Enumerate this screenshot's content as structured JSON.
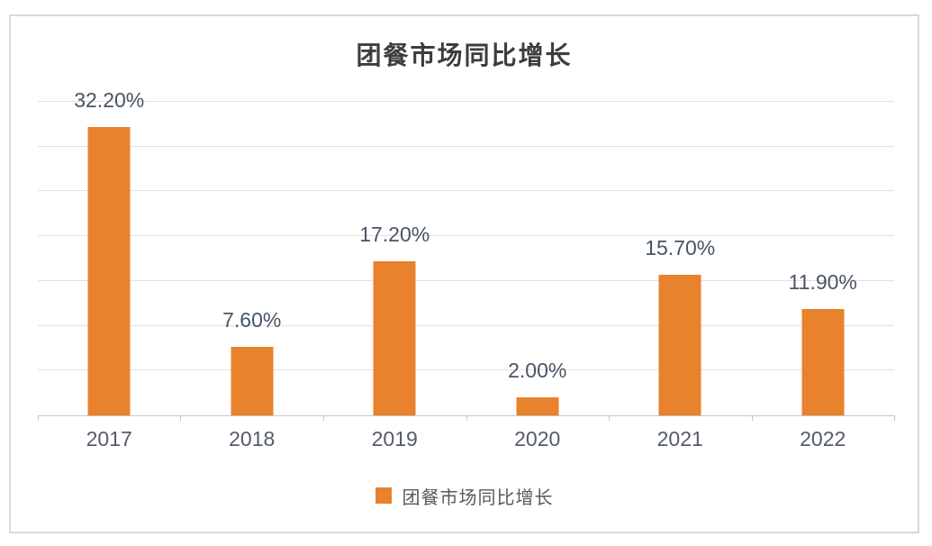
{
  "chart": {
    "title": "团餐市场同比增长",
    "legend": {
      "label": "团餐市场同比增长"
    },
    "colors": {
      "bar": "#E8822D",
      "gridline": "#E2E2E2",
      "axis": "#C6C6C6",
      "frame_border": "#D9D9D9",
      "title_text": "#3D3D3D",
      "data_label_text": "#485565",
      "axis_label_text": "#555C68",
      "legend_text": "#595959"
    }
  },
  "chart_data": {
    "type": "bar",
    "title": "团餐市场同比增长",
    "categories": [
      "2017",
      "2018",
      "2019",
      "2020",
      "2021",
      "2022"
    ],
    "values": [
      32.2,
      7.6,
      17.2,
      2.0,
      15.7,
      11.9
    ],
    "data_labels": [
      "32.20%",
      "7.60%",
      "17.20%",
      "2.00%",
      "15.70%",
      "11.90%"
    ],
    "xlabel": "",
    "ylabel": "",
    "ylim": [
      0,
      35
    ],
    "gridline_step": 5,
    "grid": true,
    "y_axis_tick_labels_visible": false,
    "legend_entries": [
      "团餐市场同比增长"
    ],
    "legend_position": "bottom",
    "bar_color": "#E8822D"
  }
}
